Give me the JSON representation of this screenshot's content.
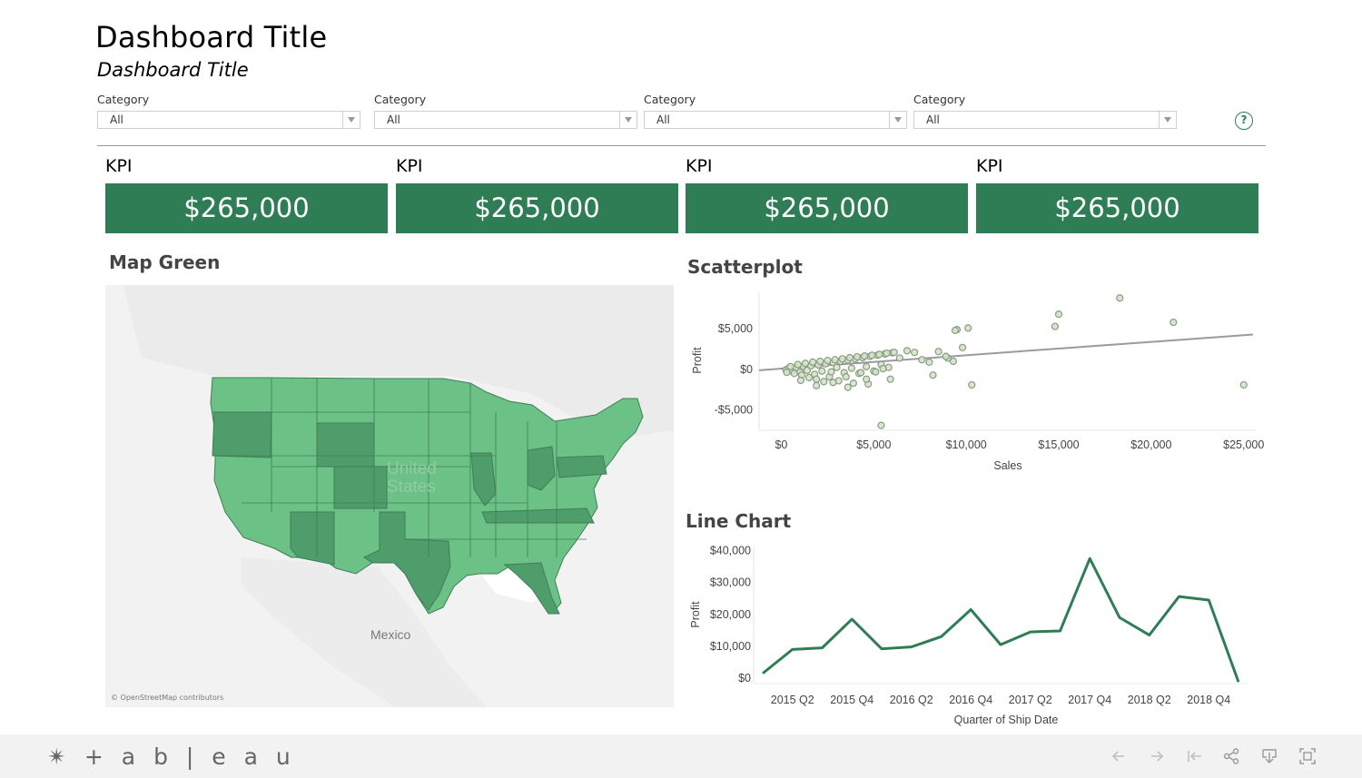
{
  "header": {
    "title": "Dashboard Title",
    "subtitle": "Dashboard Title"
  },
  "filters": [
    {
      "label": "Category",
      "value": "All"
    },
    {
      "label": "Category",
      "value": "All"
    },
    {
      "label": "Category",
      "value": "All"
    },
    {
      "label": "Category",
      "value": "All"
    }
  ],
  "help_glyph": "?",
  "kpis": [
    {
      "label": "KPI",
      "value": "$265,000"
    },
    {
      "label": "KPI",
      "value": "$265,000"
    },
    {
      "label": "KPI",
      "value": "$265,000"
    },
    {
      "label": "KPI",
      "value": "$265,000"
    }
  ],
  "map": {
    "title": "Map Green",
    "country_label": "United States",
    "country_label_lines": [
      "United",
      "States"
    ],
    "neighbor_label": "Mexico",
    "credit": "© OpenStreetMap contributors",
    "colors": {
      "base": "#6cc186",
      "dark": "#4e9d6b",
      "land": "#ececec",
      "water": "#ffffff"
    }
  },
  "scatterplot": {
    "title": "Scatterplot",
    "chart_data": {
      "type": "scatter",
      "xlabel": "Sales",
      "ylabel": "Profit",
      "xlim": [
        -1200,
        25700
      ],
      "ylim": [
        -7500,
        9500
      ],
      "x_ticks": [
        "$0",
        "$5,000",
        "$10,000",
        "$15,000",
        "$20,000",
        "$25,000"
      ],
      "x_tick_values": [
        0,
        5000,
        10000,
        15000,
        20000,
        25000
      ],
      "y_ticks": [
        "$5,000",
        "$0",
        "-$5,000"
      ],
      "y_tick_values": [
        5000,
        0,
        -5000
      ],
      "trend_line": {
        "x": [
          -1200,
          25500
        ],
        "y": [
          -100,
          4300
        ]
      },
      "points": [
        [
          250,
          -50
        ],
        [
          400,
          150
        ],
        [
          600,
          -200
        ],
        [
          800,
          250
        ],
        [
          1000,
          -350
        ],
        [
          1200,
          350
        ],
        [
          1400,
          -100
        ],
        [
          1600,
          450
        ],
        [
          1800,
          -600
        ],
        [
          2000,
          550
        ],
        [
          2200,
          -200
        ],
        [
          2400,
          700
        ],
        [
          2600,
          -900
        ],
        [
          2800,
          850
        ],
        [
          3000,
          250
        ],
        [
          3200,
          1000
        ],
        [
          3400,
          -400
        ],
        [
          3600,
          1150
        ],
        [
          3800,
          150
        ],
        [
          4000,
          1300
        ],
        [
          4200,
          -500
        ],
        [
          4400,
          1450
        ],
        [
          4600,
          350
        ],
        [
          4800,
          1600
        ],
        [
          5000,
          -200
        ],
        [
          5200,
          1750
        ],
        [
          5400,
          600
        ],
        [
          5600,
          1900
        ],
        [
          5800,
          250
        ],
        [
          6000,
          2050
        ],
        [
          300,
          -350
        ],
        [
          500,
          350
        ],
        [
          700,
          -500
        ],
        [
          900,
          600
        ],
        [
          1100,
          -700
        ],
        [
          1300,
          750
        ],
        [
          1500,
          -1000
        ],
        [
          1700,
          900
        ],
        [
          1900,
          -1200
        ],
        [
          2100,
          1000
        ],
        [
          2300,
          -1500
        ],
        [
          2500,
          1100
        ],
        [
          2700,
          -300
        ],
        [
          2900,
          1200
        ],
        [
          3100,
          -1400
        ],
        [
          3300,
          1300
        ],
        [
          3500,
          -900
        ],
        [
          3700,
          1450
        ],
        [
          3900,
          -1700
        ],
        [
          4100,
          1550
        ],
        [
          4300,
          -400
        ],
        [
          4500,
          1650
        ],
        [
          4700,
          -1800
        ],
        [
          4900,
          1750
        ],
        [
          5100,
          -300
        ],
        [
          5300,
          1850
        ],
        [
          5500,
          100
        ],
        [
          5700,
          2000
        ],
        [
          5900,
          -1200
        ],
        [
          6100,
          2100
        ],
        [
          1050,
          -1350
        ],
        [
          1900,
          -2000
        ],
        [
          2800,
          -1600
        ],
        [
          3600,
          -2200
        ],
        [
          4600,
          -1200
        ],
        [
          6400,
          1400
        ],
        [
          6800,
          2300
        ],
        [
          7200,
          2100
        ],
        [
          7600,
          1200
        ],
        [
          8000,
          900
        ],
        [
          8500,
          2200
        ],
        [
          9000,
          1400
        ],
        [
          9300,
          1000
        ],
        [
          8900,
          1600
        ],
        [
          9800,
          2700
        ],
        [
          8200,
          -700
        ],
        [
          9500,
          4900
        ],
        [
          9400,
          4800
        ],
        [
          10100,
          5100
        ],
        [
          10300,
          -1900
        ],
        [
          15000,
          6800
        ],
        [
          14800,
          5300
        ],
        [
          18300,
          8800
        ],
        [
          21200,
          5800
        ],
        [
          25000,
          -1900
        ],
        [
          5400,
          -6900
        ]
      ],
      "colors": {
        "marker_fill": "#d1e4c8",
        "marker_stroke": "#8a9a84",
        "trend": "#9a9a9a"
      }
    }
  },
  "linechart": {
    "title": "Line Chart",
    "chart_data": {
      "type": "line",
      "xlabel": "Quarter of Ship Date",
      "ylabel": "Profit",
      "ylim": [
        0,
        41000
      ],
      "y_ticks": [
        "$40,000",
        "$30,000",
        "$20,000",
        "$10,000",
        "$0"
      ],
      "y_tick_values": [
        40000,
        30000,
        20000,
        10000,
        0
      ],
      "x": [
        "2015 Q1",
        "2015 Q2",
        "2015 Q3",
        "2015 Q4",
        "2016 Q1",
        "2016 Q2",
        "2016 Q3",
        "2016 Q4",
        "2017 Q1",
        "2017 Q2",
        "2017 Q3",
        "2017 Q4",
        "2018 Q1",
        "2018 Q2",
        "2018 Q3",
        "2018 Q4",
        "2019 Q1"
      ],
      "x_labels_shown": [
        "2015 Q2",
        "2015 Q4",
        "2016 Q2",
        "2016 Q4",
        "2017 Q2",
        "2017 Q4",
        "2018 Q2",
        "2018 Q4"
      ],
      "series": [
        {
          "values": [
            1500,
            9000,
            9500,
            18500,
            9200,
            9800,
            13000,
            21500,
            10500,
            14500,
            14800,
            37500,
            19000,
            13500,
            25600,
            24500,
            -1200
          ]
        }
      ],
      "colors": {
        "line": "#2e7d55"
      }
    }
  },
  "footer": {
    "logo": "+ a b | e a u",
    "brand": "tableau"
  }
}
